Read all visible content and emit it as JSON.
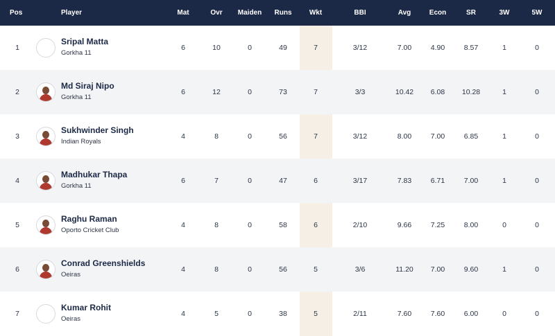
{
  "headers": {
    "pos": "Pos",
    "player": "Player",
    "mat": "Mat",
    "ovr": "Ovr",
    "maiden": "Maiden",
    "runs": "Runs",
    "wkt": "Wkt",
    "bbi": "BBI",
    "avg": "Avg",
    "econ": "Econ",
    "sr": "SR",
    "w3": "3W",
    "w5": "5W"
  },
  "rows": [
    {
      "pos": "1",
      "name": "Sripal Matta",
      "team": "Gorkha 11",
      "mat": "6",
      "ovr": "10",
      "maiden": "0",
      "runs": "49",
      "wkt": "7",
      "bbi": "3/12",
      "avg": "7.00",
      "econ": "4.90",
      "sr": "8.57",
      "w3": "1",
      "w5": "0",
      "avatar": "empty"
    },
    {
      "pos": "2",
      "name": "Md Siraj Nipo",
      "team": "Gorkha 11",
      "mat": "6",
      "ovr": "12",
      "maiden": "0",
      "runs": "73",
      "wkt": "7",
      "bbi": "3/3",
      "avg": "10.42",
      "econ": "6.08",
      "sr": "10.28",
      "w3": "1",
      "w5": "0",
      "avatar": "photo"
    },
    {
      "pos": "3",
      "name": "Sukhwinder Singh",
      "team": "Indian Royals",
      "mat": "4",
      "ovr": "8",
      "maiden": "0",
      "runs": "56",
      "wkt": "7",
      "bbi": "3/12",
      "avg": "8.00",
      "econ": "7.00",
      "sr": "6.85",
      "w3": "1",
      "w5": "0",
      "avatar": "photo"
    },
    {
      "pos": "4",
      "name": "Madhukar Thapa",
      "team": "Gorkha 11",
      "mat": "6",
      "ovr": "7",
      "maiden": "0",
      "runs": "47",
      "wkt": "6",
      "bbi": "3/17",
      "avg": "7.83",
      "econ": "6.71",
      "sr": "7.00",
      "w3": "1",
      "w5": "0",
      "avatar": "photo"
    },
    {
      "pos": "5",
      "name": "Raghu Raman",
      "team": "Oporto Cricket Club",
      "mat": "4",
      "ovr": "8",
      "maiden": "0",
      "runs": "58",
      "wkt": "6",
      "bbi": "2/10",
      "avg": "9.66",
      "econ": "7.25",
      "sr": "8.00",
      "w3": "0",
      "w5": "0",
      "avatar": "photo"
    },
    {
      "pos": "6",
      "name": "Conrad Greenshields",
      "team": "Oeiras",
      "mat": "4",
      "ovr": "8",
      "maiden": "0",
      "runs": "56",
      "wkt": "5",
      "bbi": "3/6",
      "avg": "11.20",
      "econ": "7.00",
      "sr": "9.60",
      "w3": "1",
      "w5": "0",
      "avatar": "photo"
    },
    {
      "pos": "7",
      "name": "Kumar Rohit",
      "team": "Oeiras",
      "mat": "4",
      "ovr": "5",
      "maiden": "0",
      "runs": "38",
      "wkt": "5",
      "bbi": "2/11",
      "avg": "7.60",
      "econ": "7.60",
      "sr": "6.00",
      "w3": "0",
      "w5": "0",
      "avatar": "empty"
    }
  ]
}
